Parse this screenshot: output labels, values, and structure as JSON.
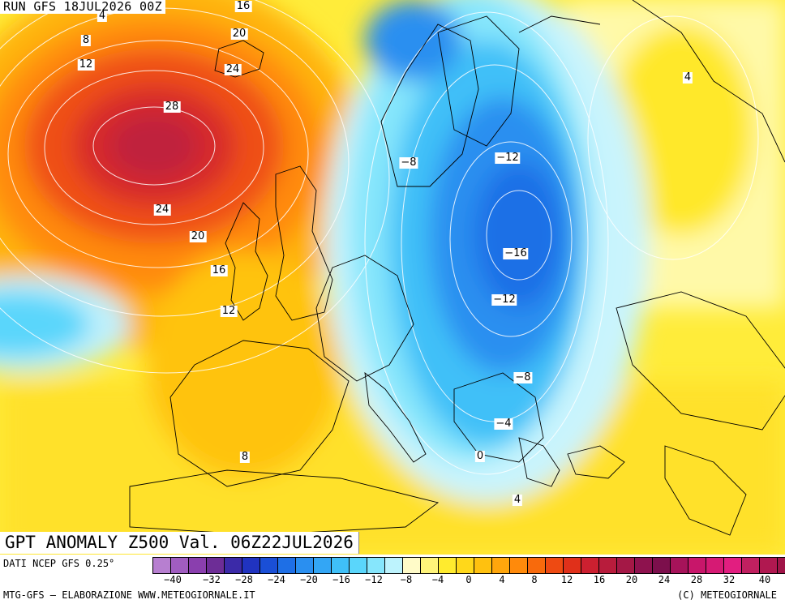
{
  "header": {
    "run_label": "RUN GFS 18JUL2026 00Z"
  },
  "title": {
    "text": "GPT ANOMALY Z500 Val. 06Z22JUL2026"
  },
  "footer": {
    "source": "DATI NCEP GFS 0.25°",
    "credit": "MTG-GFS – ELABORAZIONE WWW.METEOGIORNALE.IT",
    "copyright": "(C) METEOGIORNALE"
  },
  "legend": {
    "colors": [
      "#b77fd0",
      "#a05dc0",
      "#8a3fae",
      "#6d2d96",
      "#3b2aa8",
      "#2033c0",
      "#1a4fd6",
      "#1e6fe6",
      "#2a8ff0",
      "#33a6f5",
      "#3fc0f8",
      "#5ad6fb",
      "#86e6fc",
      "#bdf3fd",
      "#fffbc8",
      "#fff47a",
      "#ffeb2e",
      "#ffd81a",
      "#ffc10f",
      "#ffa60c",
      "#ff8a0b",
      "#f86a0c",
      "#ee4a12",
      "#e0301a",
      "#cc2030",
      "#b81c3c",
      "#a41846",
      "#8e124e",
      "#7c0f4c",
      "#a6135a",
      "#c8166a",
      "#d61a74",
      "#e21e80",
      "#c02060",
      "#b01850",
      "#a01448"
    ],
    "tick_labels": [
      "−40",
      "−32",
      "−28",
      "−24",
      "−20",
      "−16",
      "−12",
      "−8",
      "−4",
      "0",
      "4",
      "8",
      "12",
      "16",
      "20",
      "24",
      "28",
      "32",
      "40"
    ]
  },
  "contour_labels": [
    {
      "text": "16"
    },
    {
      "text": "4"
    },
    {
      "text": "8"
    },
    {
      "text": "12"
    },
    {
      "text": "20"
    },
    {
      "text": "24"
    },
    {
      "text": "28"
    },
    {
      "text": "24"
    },
    {
      "text": "20"
    },
    {
      "text": "16"
    },
    {
      "text": "12"
    },
    {
      "text": "8"
    },
    {
      "text": "−8"
    },
    {
      "text": "−12"
    },
    {
      "text": "−16"
    },
    {
      "text": "−12"
    },
    {
      "text": "−8"
    },
    {
      "text": "−4"
    },
    {
      "text": "0"
    },
    {
      "text": "4"
    },
    {
      "text": "4"
    }
  ]
}
